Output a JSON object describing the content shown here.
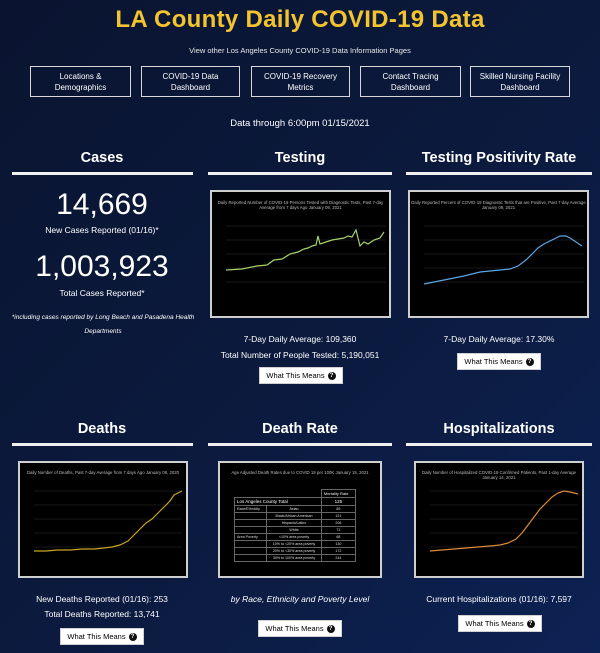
{
  "title": "LA County Daily COVID-19 Data",
  "view_other": "View other Los Angeles County COVID-19 Data Information Pages",
  "nav": [
    {
      "label": "Locations & Demographics"
    },
    {
      "label": "COVID-19 Data Dashboard"
    },
    {
      "label": "COVID-19 Recovery Metrics"
    },
    {
      "label": "Contact Tracing Dashboard"
    },
    {
      "label": "Skilled Nursing Facility Dashboard"
    }
  ],
  "data_through": "Data through 6:00pm 01/15/2021",
  "cases": {
    "title": "Cases",
    "new_value": "14,669",
    "new_label": "New Cases Reported (01/16)*",
    "total_value": "1,003,923",
    "total_label": "Total Cases Reported*",
    "note": "*including cases reported by Long Beach and Pasadena Health Departments"
  },
  "testing": {
    "title": "Testing",
    "chart_title": "Daily Reported Number of COVID-19 Persons Tested with Diagnostic Tests, Past 7-day Average from 7 days Ago January 09, 2021",
    "avg": "7-Day Daily Average: 109,360",
    "total": "Total Number of People Tested: 5,190,051",
    "button": "What This Means"
  },
  "positivity": {
    "title": "Testing Positivity Rate",
    "chart_title": "Daily Reported Percent of COVID-19 Diagnostic Tests that are Positive, Past 7-day Average January 09, 2021",
    "avg": "7-Day Daily Average: 17.30%",
    "button": "What This Means"
  },
  "deaths": {
    "title": "Deaths",
    "chart_title": "Daily Number of Deaths, Past 7-day Average from 7 days Ago January 08, 2020",
    "new": "New Deaths Reported (01/16): 253",
    "total": "Total Deaths Reported: 13,741",
    "button": "What This Means"
  },
  "death_rate": {
    "title": "Death Rate",
    "chart_title": "Age Adjusted Death Rates due to COVID 19 per 100K January 15, 2021",
    "col_header": "Mortality Rate",
    "la_total_label": "Los Angeles County Total",
    "la_total_value": "125",
    "rows": [
      {
        "group": "Race/Ethnicity",
        "label": "Asian",
        "value": "89"
      },
      {
        "group": "",
        "label": "Black/African American",
        "value": "121"
      },
      {
        "group": "",
        "label": "Hispanic/Latino",
        "value": "206"
      },
      {
        "group": "",
        "label": "White",
        "value": "71"
      },
      {
        "group": "Area Poverty",
        "label": "<10% area poverty",
        "value": "68"
      },
      {
        "group": "",
        "label": "10% to <20% area poverty",
        "value": "130"
      },
      {
        "group": "",
        "label": "20% to <30% area poverty",
        "value": "172"
      },
      {
        "group": "",
        "label": "30% to 100% area poverty",
        "value": "244"
      }
    ],
    "caption": "by Race, Ethnicity and Poverty Level",
    "button": "What This Means"
  },
  "hospitalizations": {
    "title": "Hospitalizations",
    "chart_title": "Daily Number of Hospitalized COVID-19 Confirmed Patients, Past 1-day Average January 14, 2021",
    "current": "Current Hospitalizations (01/16): 7,597",
    "button": "What This Means"
  },
  "colors": {
    "title_gold": "#f4c430",
    "testing_line": "#a8d26a",
    "positivity_line": "#5aa6e6",
    "deaths_line": "#c9a227",
    "hosp_line": "#d98a3a"
  }
}
